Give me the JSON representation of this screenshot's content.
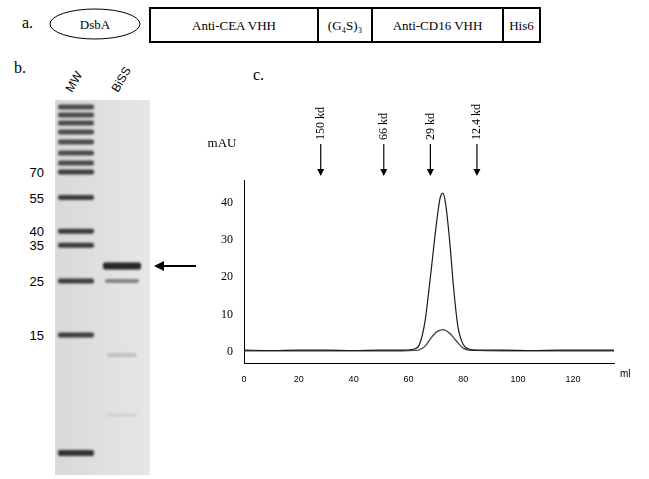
{
  "diagram": {
    "label": "a.",
    "ellipse": "DsbA",
    "boxes": [
      "Anti-CEA VHH",
      "(G₄S)₃",
      "Anti-CD16 VHH",
      "His6"
    ]
  },
  "gel": {
    "label": "b.",
    "lanes": [
      "MW",
      "BiSS"
    ],
    "marker_labels": [
      70,
      55,
      40,
      35,
      25,
      15
    ]
  },
  "chart_data": {
    "type": "line",
    "title": "c.",
    "y_label": "mAU",
    "x_label": "ml",
    "x": [
      0,
      10,
      20,
      30,
      40,
      50,
      58,
      62,
      64,
      66,
      68,
      70,
      71.5,
      72.5,
      73.5,
      75,
      76.5,
      78,
      80,
      82,
      85,
      95,
      105,
      115,
      125,
      135
    ],
    "series": [
      {
        "color": "#1a1a1a",
        "values": [
          0.5,
          0.4,
          0.5,
          0.5,
          0.4,
          0.5,
          0.5,
          0.8,
          2,
          8,
          20,
          33,
          41,
          42.5,
          40,
          30,
          17,
          7,
          2,
          0.8,
          0.5,
          0.5,
          0.4,
          0.5,
          0.5,
          0.5
        ]
      },
      {
        "color": "#3a3a3a",
        "values": [
          0.3,
          0.3,
          0.3,
          0.3,
          0.3,
          0.3,
          0.3,
          0.4,
          0.6,
          1.5,
          3.5,
          5.2,
          5.8,
          6,
          5.8,
          5,
          3.8,
          2.5,
          1,
          0.5,
          0.4,
          0.3,
          0.3,
          0.3,
          0.3,
          0.3
        ]
      }
    ],
    "xlim": [
      0,
      135
    ],
    "xticks": [
      0,
      20,
      40,
      60,
      80,
      100,
      120
    ],
    "ylim": [
      -3,
      46
    ],
    "yticks": [
      0,
      10,
      20,
      30,
      40
    ],
    "grid": false,
    "annotations": [
      {
        "x": 28,
        "label": "150 kd"
      },
      {
        "x": 51,
        "label": "66 kd"
      },
      {
        "x": 68,
        "label": "29 kd"
      },
      {
        "x": 85,
        "label": "12.4 kd"
      }
    ]
  }
}
